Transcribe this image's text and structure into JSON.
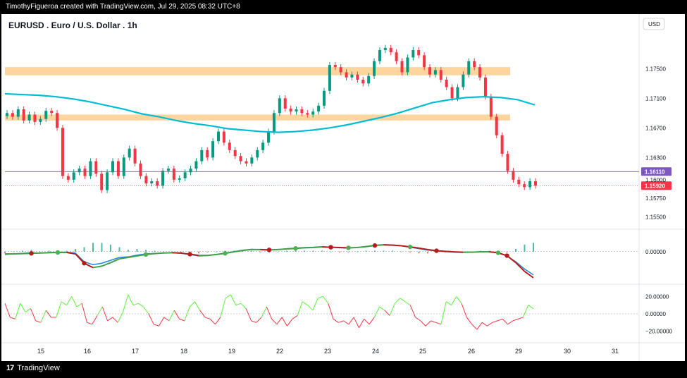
{
  "caption": "TimothyFigueroa created with TradingView.com, Jul 29, 2025 08:32 UTC+8",
  "brand": {
    "logo": "17",
    "name": "TradingView"
  },
  "colors": {
    "bull": "#089981",
    "bear": "#f23645",
    "ma": "#00bcd4",
    "zone": "#ffd59e",
    "macd_line": "#1e88e5",
    "macd_signal_up": "#43a047",
    "macd_signal_down": "#b71c1c",
    "osc_up": "#5ef23e",
    "osc_down": "#f23645",
    "hline": "#7e57c2"
  },
  "chart_data": [
    {
      "type": "candlestick",
      "title": "EURUSD . Euro / U.S. Dollar . 1h",
      "currency": "USD",
      "y_ticks": [
        "1.17500",
        "1.17100",
        "1.16700",
        "1.16300",
        "1.16000",
        "1.15750",
        "1.15500"
      ],
      "ylim": [
        1.1538,
        1.1795
      ],
      "x_ticks": [
        "15",
        "16",
        "17",
        "18",
        "19",
        "22",
        "23",
        "24",
        "25",
        "26",
        "29",
        "30",
        "31"
      ],
      "price_labels": [
        {
          "text": "1.16110",
          "value": 1.1611,
          "color": "#7e57c2"
        },
        {
          "text": "1.15920",
          "value": 1.1592,
          "color": "#f23645"
        }
      ],
      "resistance_zones": [
        [
          1.1741,
          1.1752
        ],
        [
          1.168,
          1.1688
        ]
      ],
      "horizontal_line": 1.1611,
      "moving_average": [
        1.1716,
        1.1715,
        1.1714,
        1.1712,
        1.1709,
        1.1705,
        1.17,
        1.1695,
        1.1689,
        1.1685,
        1.168,
        1.1676,
        1.1673,
        1.1669,
        1.1667,
        1.1665,
        1.1664,
        1.1665,
        1.1667,
        1.167,
        1.1674,
        1.1679,
        1.1684,
        1.169,
        1.1697,
        1.1704,
        1.1708,
        1.1711,
        1.1712,
        1.1711,
        1.1708,
        1.1701
      ],
      "close": [
        1.169,
        1.1685,
        1.1695,
        1.168,
        1.1688,
        1.1678,
        1.1682,
        1.1693,
        1.169,
        1.167,
        1.1605,
        1.16,
        1.161,
        1.1615,
        1.1605,
        1.1625,
        1.1608,
        1.1586,
        1.161,
        1.1625,
        1.1605,
        1.163,
        1.1642,
        1.1622,
        1.1605,
        1.1595,
        1.1598,
        1.1592,
        1.1612,
        1.1615,
        1.16,
        1.1602,
        1.161,
        1.1615,
        1.1625,
        1.164,
        1.163,
        1.1652,
        1.1665,
        1.165,
        1.164,
        1.1632,
        1.1625,
        1.1622,
        1.163,
        1.164,
        1.165,
        1.1665,
        1.169,
        1.171,
        1.1696,
        1.1692,
        1.1695,
        1.169,
        1.1688,
        1.1692,
        1.17,
        1.172,
        1.1755,
        1.1752,
        1.1745,
        1.1738,
        1.1742,
        1.1735,
        1.173,
        1.174,
        1.176,
        1.1775,
        1.1778,
        1.1772,
        1.176,
        1.1745,
        1.1765,
        1.1775,
        1.1768,
        1.1752,
        1.1742,
        1.1748,
        1.1735,
        1.1725,
        1.171,
        1.1725,
        1.1742,
        1.176,
        1.1752,
        1.1738,
        1.1712,
        1.1685,
        1.166,
        1.1635,
        1.1612,
        1.16,
        1.1594,
        1.159,
        1.1598,
        1.1592
      ]
    },
    {
      "type": "line",
      "name": "MACD pane",
      "y_ticks": [
        "0.00000"
      ],
      "ylim": [
        -1.0,
        0.6
      ],
      "markers_note": "circles at line crossovers",
      "macd": [
        -0.1,
        -0.08,
        -0.06,
        -0.04,
        -0.05,
        -0.03,
        -0.02,
        -0.02,
        -0.05,
        -0.35,
        -0.45,
        -0.4,
        -0.3,
        -0.2,
        -0.18,
        -0.12,
        -0.08,
        -0.06,
        -0.05,
        -0.04,
        -0.06,
        -0.1,
        -0.15,
        -0.14,
        -0.1,
        -0.05,
        0.0,
        0.05,
        0.08,
        0.06,
        0.05,
        0.07,
        0.1,
        0.12,
        0.14,
        0.15,
        0.17,
        0.15,
        0.13,
        0.12,
        0.14,
        0.18,
        0.22,
        0.24,
        0.23,
        0.2,
        0.15,
        0.1,
        0.05,
        0.02,
        0.0,
        -0.02,
        -0.03,
        -0.02,
        0.0,
        0.0,
        -0.05,
        -0.15,
        -0.35,
        -0.6,
        -0.8
      ],
      "signal": [
        -0.08,
        -0.08,
        -0.07,
        -0.06,
        -0.05,
        -0.04,
        -0.03,
        -0.03,
        -0.08,
        -0.4,
        -0.55,
        -0.5,
        -0.38,
        -0.25,
        -0.2,
        -0.15,
        -0.1,
        -0.07,
        -0.05,
        -0.04,
        -0.05,
        -0.09,
        -0.13,
        -0.13,
        -0.1,
        -0.06,
        -0.01,
        0.04,
        0.07,
        0.07,
        0.06,
        0.07,
        0.09,
        0.11,
        0.13,
        0.14,
        0.16,
        0.15,
        0.14,
        0.13,
        0.14,
        0.17,
        0.21,
        0.23,
        0.22,
        0.2,
        0.16,
        0.12,
        0.07,
        0.03,
        0.01,
        -0.01,
        -0.02,
        -0.02,
        -0.01,
        -0.01,
        -0.04,
        -0.14,
        -0.38,
        -0.68,
        -0.9
      ],
      "crossover_markers": [
        {
          "i": 3,
          "c": "red"
        },
        {
          "i": 6,
          "c": "green"
        },
        {
          "i": 9,
          "c": "red"
        },
        {
          "i": 16,
          "c": "green"
        },
        {
          "i": 21,
          "c": "red"
        },
        {
          "i": 25,
          "c": "green"
        },
        {
          "i": 30,
          "c": "red"
        },
        {
          "i": 33,
          "c": "green"
        },
        {
          "i": 37,
          "c": "red"
        },
        {
          "i": 39,
          "c": "green"
        },
        {
          "i": 42,
          "c": "red"
        },
        {
          "i": 46,
          "c": "green"
        },
        {
          "i": 49,
          "c": "red"
        },
        {
          "i": 56,
          "c": "green"
        },
        {
          "i": 57,
          "c": "red"
        }
      ]
    },
    {
      "type": "line",
      "name": "Oscillator pane",
      "y_ticks": [
        "20.00000",
        "0.00000",
        "−20.00000"
      ],
      "ylim": [
        -30,
        30
      ],
      "values": [
        12,
        -4,
        -6,
        12,
        2,
        6,
        -8,
        -10,
        4,
        -4,
        -4,
        14,
        10,
        20,
        8,
        12,
        -10,
        -12,
        -2,
        8,
        -8,
        -4,
        -10,
        2,
        22,
        10,
        12,
        8,
        0,
        -12,
        -14,
        -4,
        -8,
        4,
        -6,
        -8,
        8,
        14,
        4,
        -4,
        -6,
        -12,
        -4,
        18,
        22,
        10,
        12,
        6,
        -8,
        -10,
        -4,
        8,
        -6,
        -12,
        -4,
        -14,
        -6,
        -2,
        14,
        10,
        4,
        18,
        20,
        12,
        -6,
        -10,
        -8,
        -12,
        -4,
        -16,
        -6,
        -12,
        -4,
        8,
        4,
        -2,
        12,
        18,
        14,
        10,
        -4,
        -8,
        -14,
        -8,
        -10,
        -12,
        14,
        10,
        20,
        12,
        -4,
        -12,
        -18,
        -10,
        -14,
        -10,
        -8,
        -6,
        -12,
        -8,
        -6,
        -4,
        10,
        6
      ]
    }
  ]
}
